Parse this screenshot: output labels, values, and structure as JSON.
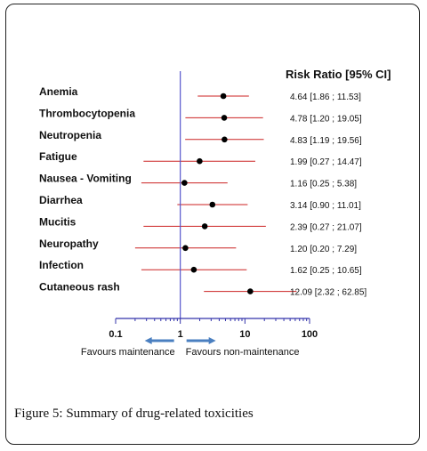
{
  "chart_data": {
    "type": "forest",
    "header": "Risk Ratio [95% CI]",
    "x_scale": "log",
    "xlim": [
      0.1,
      100
    ],
    "x_ticks": [
      0.1,
      1,
      10,
      100
    ],
    "x_tick_labels": [
      "0.1",
      "1",
      "10",
      "100"
    ],
    "reference_line": 1,
    "favours_left": "Favours maintenance",
    "favours_right": "Favours non-maintenance",
    "rows": [
      {
        "label": "Anemia",
        "estimate": 4.64,
        "lo": 1.86,
        "hi": 11.53,
        "ci_text": "4.64 [1.86 ; 11.53]"
      },
      {
        "label": "Thrombocytopenia",
        "estimate": 4.78,
        "lo": 1.2,
        "hi": 19.05,
        "ci_text": "4.78 [1.20 ; 19.05]"
      },
      {
        "label": "Neutropenia",
        "estimate": 4.83,
        "lo": 1.19,
        "hi": 19.56,
        "ci_text": "4.83 [1.19 ; 19.56]"
      },
      {
        "label": "Fatigue",
        "estimate": 1.99,
        "lo": 0.27,
        "hi": 14.47,
        "ci_text": "1.99 [0.27 ; 14.47]"
      },
      {
        "label": "Nausea - Vomiting",
        "estimate": 1.16,
        "lo": 0.25,
        "hi": 5.38,
        "ci_text": "1.16 [0.25 ; 5.38]"
      },
      {
        "label": "Diarrhea",
        "estimate": 3.14,
        "lo": 0.9,
        "hi": 11.01,
        "ci_text": "3.14 [0.90 ; 11.01]"
      },
      {
        "label": "Mucitis",
        "estimate": 2.39,
        "lo": 0.27,
        "hi": 21.07,
        "ci_text": "2.39 [0.27 ; 21.07]"
      },
      {
        "label": "Neuropathy",
        "estimate": 1.2,
        "lo": 0.2,
        "hi": 7.29,
        "ci_text": "1.20 [0.20 ; 7.29]"
      },
      {
        "label": "Infection",
        "estimate": 1.62,
        "lo": 0.25,
        "hi": 10.65,
        "ci_text": "1.62 [0.25 ; 10.65]"
      },
      {
        "label": "Cutaneous rash",
        "estimate": 12.09,
        "lo": 2.32,
        "hi": 62.85,
        "ci_text": "12.09 [2.32 ; 62.85]"
      }
    ],
    "colors": {
      "ci_line": "#cc2222",
      "point": "#000000",
      "reference_line": "#5555cc",
      "axis": "#3333aa",
      "arrow": "#4a7fc0"
    }
  },
  "caption": {
    "label": "Figure 5:",
    "text": "Summary of drug-related toxicities"
  }
}
